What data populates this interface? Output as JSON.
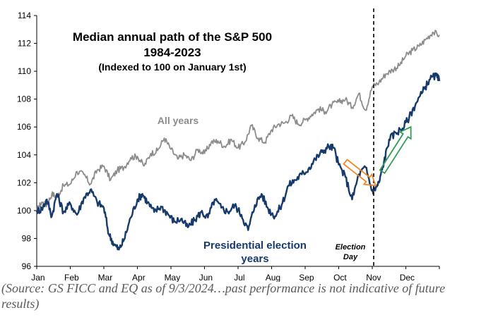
{
  "chart_data": {
    "type": "line",
    "title": "Median annual path of the S&P 500",
    "subtitle": "1984-2023",
    "subtitle2": "(Indexed to 100 on January 1st)",
    "xlabel": "",
    "ylabel": "",
    "x_ticks": [
      "Jan",
      "Feb",
      "Mar",
      "Apr",
      "May",
      "Jun",
      "Jul",
      "Aug",
      "Sep",
      "Oct",
      "Nov",
      "Dec"
    ],
    "xlim": [
      0,
      12
    ],
    "ylim": [
      96,
      114
    ],
    "y_ticks": [
      96,
      98,
      100,
      102,
      104,
      106,
      108,
      110,
      112,
      114
    ],
    "grid": false,
    "series": [
      {
        "name": "All years",
        "color": "#8c8c8c",
        "x": [
          0,
          0.15,
          0.3,
          0.45,
          0.6,
          0.8,
          1.0,
          1.2,
          1.4,
          1.6,
          1.8,
          2.0,
          2.2,
          2.4,
          2.6,
          2.8,
          3.0,
          3.2,
          3.4,
          3.6,
          3.8,
          4.0,
          4.2,
          4.4,
          4.6,
          4.8,
          5.0,
          5.2,
          5.4,
          5.6,
          5.8,
          6.0,
          6.2,
          6.4,
          6.6,
          6.8,
          7.0,
          7.2,
          7.4,
          7.6,
          7.8,
          8.0,
          8.2,
          8.4,
          8.6,
          8.8,
          9.0,
          9.2,
          9.4,
          9.6,
          9.8,
          10.0,
          10.2,
          10.4,
          10.6,
          10.8,
          11.0,
          11.2,
          11.4,
          11.6,
          11.8,
          12.0
        ],
        "values": [
          100,
          100.6,
          100.4,
          101.2,
          101.0,
          101.8,
          101.9,
          102.8,
          102.6,
          101.9,
          102.9,
          103.2,
          102.2,
          102.9,
          103.1,
          103.8,
          103.9,
          103.2,
          104.1,
          104.3,
          105.2,
          104.4,
          103.7,
          104.0,
          103.6,
          104.4,
          104.1,
          104.9,
          105.0,
          104.6,
          105.1,
          104.5,
          104.9,
          106.1,
          105.2,
          104.9,
          105.8,
          106.2,
          106.3,
          106.8,
          106.2,
          106.5,
          106.9,
          107.3,
          107.1,
          107.6,
          107.8,
          108.0,
          107.4,
          108.4,
          107.2,
          108.9,
          109.2,
          109.8,
          110.1,
          110.4,
          111.1,
          111.5,
          111.8,
          112.3,
          112.8,
          112.6
        ]
      },
      {
        "name": "Presidential election years",
        "color": "#163a6b",
        "x": [
          0,
          0.15,
          0.3,
          0.45,
          0.6,
          0.8,
          1.0,
          1.2,
          1.4,
          1.6,
          1.8,
          2.0,
          2.15,
          2.3,
          2.45,
          2.6,
          2.8,
          3.0,
          3.15,
          3.3,
          3.5,
          3.7,
          3.9,
          4.1,
          4.3,
          4.5,
          4.7,
          4.9,
          5.1,
          5.3,
          5.5,
          5.7,
          5.9,
          6.1,
          6.3,
          6.5,
          6.7,
          6.9,
          7.1,
          7.3,
          7.5,
          7.7,
          7.9,
          8.1,
          8.3,
          8.5,
          8.7,
          8.85,
          9.0,
          9.2,
          9.4,
          9.6,
          9.8,
          10.0,
          10.1,
          10.2,
          10.35,
          10.5,
          10.7,
          10.9,
          11.1,
          11.3,
          11.5,
          11.7,
          11.9,
          12.0
        ],
        "values": [
          100,
          100.1,
          100.8,
          99.6,
          101.2,
          99.9,
          100.5,
          99.7,
          100.9,
          101.5,
          100.6,
          100.2,
          98.3,
          97.6,
          97.2,
          97.9,
          99.5,
          100.8,
          101.2,
          100.6,
          99.9,
          100.3,
          99.8,
          99.2,
          99.4,
          98.8,
          99.3,
          99.9,
          99.5,
          100.8,
          100.2,
          99.9,
          100.4,
          99.7,
          98.6,
          100.4,
          101.2,
          100.1,
          99.6,
          100.4,
          101.8,
          102.2,
          102.6,
          103.0,
          103.7,
          104.2,
          104.6,
          104.5,
          103.3,
          102.4,
          100.8,
          102.6,
          103.1,
          101.4,
          101.6,
          102.0,
          103.5,
          105.1,
          105.6,
          105.9,
          106.7,
          107.7,
          108.5,
          109.4,
          109.7,
          109.3
        ]
      }
    ],
    "annotations": [
      {
        "text": "All years",
        "color": "#8c8c8c"
      },
      {
        "text": "Presidential election",
        "text2": "years",
        "color": "#163a6b"
      },
      {
        "text": "Election",
        "text2": "Day",
        "x": 10.0
      },
      {
        "type": "arrow",
        "color": "#f0882a",
        "x1": 9.2,
        "y1": 103.5,
        "x2": 10.1,
        "y2": 101.8
      },
      {
        "type": "arrow",
        "color": "#2e9c55",
        "x1": 10.3,
        "y1": 102.8,
        "x2": 11.15,
        "y2": 106.0
      }
    ],
    "source_note": "(Source: GS FICC and EQ as of 9/3/2024…past performance is not indicative of future results)"
  }
}
